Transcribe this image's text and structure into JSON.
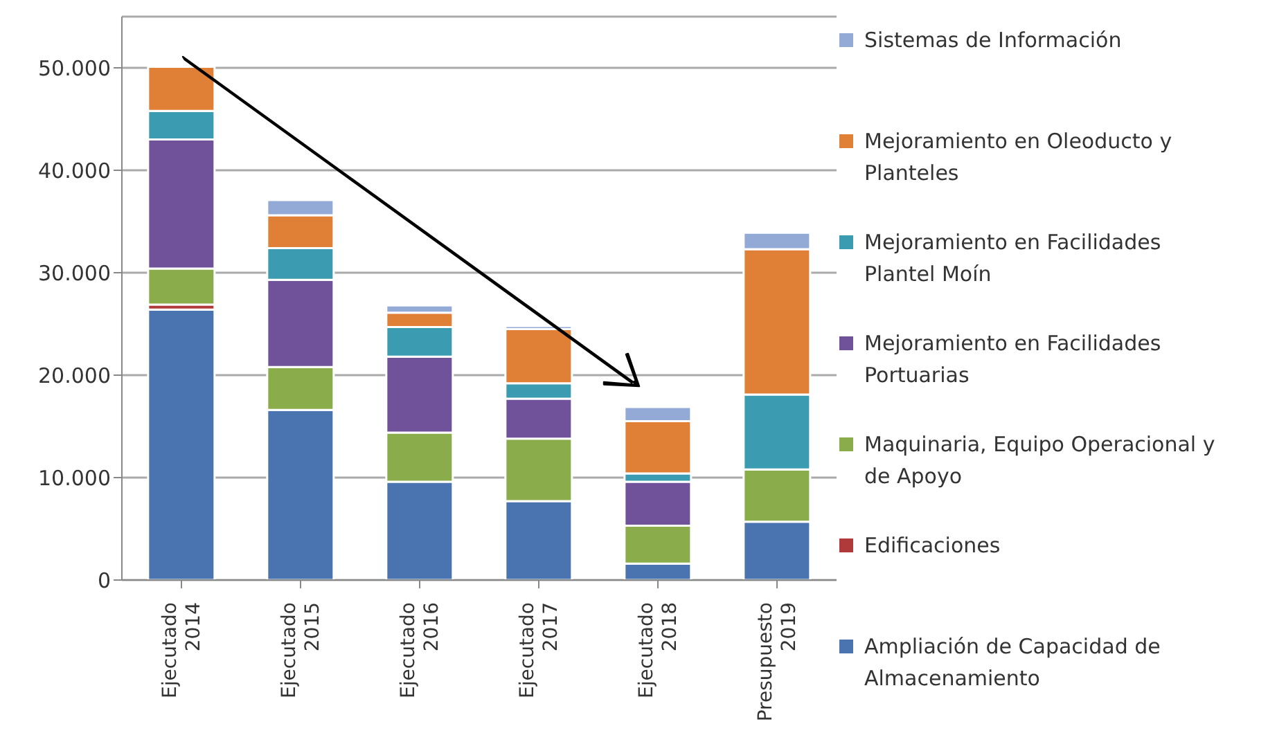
{
  "chart_data": {
    "type": "bar",
    "stacked": true,
    "categories": [
      "Ejecutado 2014",
      "Ejecutado 2015",
      "Ejecutado 2016",
      "Ejecutado 2017",
      "Ejecutado 2018",
      "Presupuesto 2019"
    ],
    "series": [
      {
        "name": "Ampliación de Capacidad de Almacenamiento",
        "color": "#4a74b0",
        "values": [
          26400,
          16600,
          9600,
          7700,
          1600,
          5700
        ]
      },
      {
        "name": "Edificaciones",
        "color": "#b03a3a",
        "values": [
          500,
          0,
          0,
          0,
          0,
          0
        ]
      },
      {
        "name": "Maquinaria, Equipo Operacional y de Apoyo",
        "color": "#8aac4a",
        "values": [
          3500,
          4200,
          4800,
          6100,
          3700,
          5100
        ]
      },
      {
        "name": "Mejoramiento en Facilidades Portuarias",
        "color": "#70529a",
        "values": [
          12600,
          8500,
          7400,
          3900,
          4300,
          0
        ]
      },
      {
        "name": "Mejoramiento en Facilidades Plantel Moín",
        "color": "#3b9bb0",
        "values": [
          2800,
          3100,
          2900,
          1500,
          800,
          7300
        ]
      },
      {
        "name": "Mejoramiento en Oleoducto y Planteles",
        "color": "#e07f36",
        "values": [
          4300,
          3200,
          1400,
          5300,
          5100,
          14200
        ]
      },
      {
        "name": "Sistemas de Información",
        "color": "#93a9d6",
        "values": [
          0,
          1500,
          700,
          300,
          1400,
          1600
        ]
      }
    ],
    "ylim": [
      0,
      55000
    ],
    "yticks": [
      {
        "value": 0,
        "label": "0"
      },
      {
        "value": 10000,
        "label": "10.000"
      },
      {
        "value": 20000,
        "label": "20.000"
      },
      {
        "value": 30000,
        "label": "30.000"
      },
      {
        "value": 40000,
        "label": "40.000"
      },
      {
        "value": 50000,
        "label": "50.000"
      }
    ],
    "grid": "y",
    "legend": "right"
  }
}
